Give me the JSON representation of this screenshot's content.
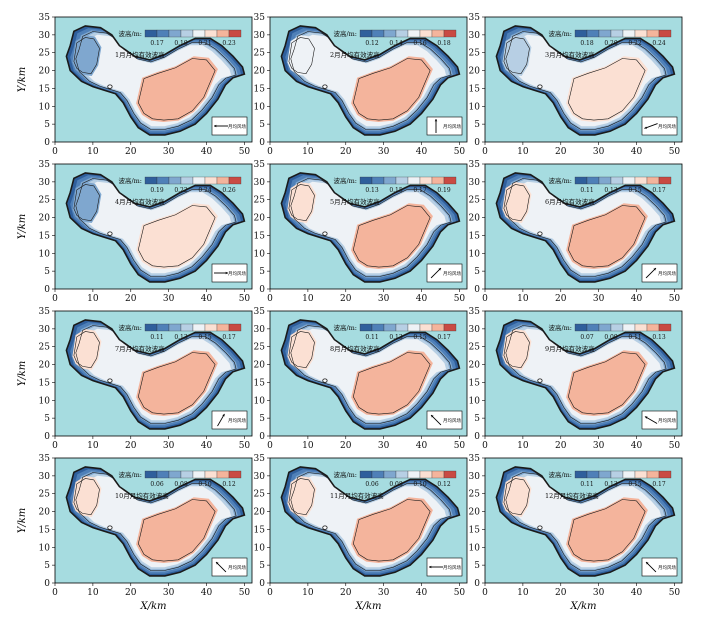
{
  "figure": {
    "x_axis_label": "X/km",
    "y_axis_label": "Y/km",
    "x_ticks": [
      "0",
      "10",
      "20",
      "30",
      "40",
      "50"
    ],
    "y_ticks": [
      "0",
      "5",
      "10",
      "15",
      "20",
      "25",
      "30",
      "35"
    ],
    "legend_prefix": "波高/m:",
    "wind_label": "月均风场"
  },
  "colors": {
    "background_water": "#a6dce0",
    "scale": [
      "#2f5f9c",
      "#4f80b8",
      "#7fa7cf",
      "#b7cfe4",
      "#eef2f6",
      "#fbe0d3",
      "#f4b49c",
      "#c94a43"
    ],
    "contour": "#1a1a1a",
    "shore": "#1a1a1a"
  },
  "chart_data": [
    {
      "type": "heatmap",
      "panel": 1,
      "title": "1月月均有效波高",
      "legend_ticks": [
        "0.17",
        "0.19",
        "0.21",
        "0.23"
      ],
      "max_level": 6,
      "west_level": 2,
      "wind_deg": 180,
      "xlim": [
        0,
        52
      ],
      "ylim": [
        0,
        35
      ]
    },
    {
      "type": "heatmap",
      "panel": 2,
      "title": "2月月均有效波高",
      "legend_ticks": [
        "0.12",
        "0.14",
        "0.16",
        "0.18"
      ],
      "max_level": 6,
      "west_level": 4,
      "wind_deg": 270,
      "xlim": [
        0,
        52
      ],
      "ylim": [
        0,
        35
      ]
    },
    {
      "type": "heatmap",
      "panel": 3,
      "title": "3月月均有效波高",
      "legend_ticks": [
        "0.18",
        "0.20",
        "0.22",
        "0.24"
      ],
      "max_level": 5,
      "west_level": 3,
      "wind_deg": 160,
      "xlim": [
        0,
        52
      ],
      "ylim": [
        0,
        35
      ]
    },
    {
      "type": "heatmap",
      "panel": 4,
      "title": "4月月均有效波高",
      "legend_ticks": [
        "0.19",
        "0.22",
        "0.24",
        "0.26"
      ],
      "max_level": 5,
      "west_level": 2,
      "wind_deg": 0,
      "xlim": [
        0,
        52
      ],
      "ylim": [
        0,
        35
      ]
    },
    {
      "type": "heatmap",
      "panel": 5,
      "title": "5月月均有效波高",
      "legend_ticks": [
        "0.13",
        "0.15",
        "0.17",
        "0.19"
      ],
      "max_level": 6,
      "west_level": 5,
      "wind_deg": 315,
      "xlim": [
        0,
        52
      ],
      "ylim": [
        0,
        35
      ]
    },
    {
      "type": "heatmap",
      "panel": 6,
      "title": "6月月均有效波高",
      "legend_ticks": [
        "0.11",
        "0.13",
        "0.15",
        "0.17"
      ],
      "max_level": 6,
      "west_level": 5,
      "wind_deg": 315,
      "xlim": [
        0,
        52
      ],
      "ylim": [
        0,
        35
      ]
    },
    {
      "type": "heatmap",
      "panel": 7,
      "title": "7月月均有效波高",
      "legend_ticks": [
        "0.11",
        "0.13",
        "0.15",
        "0.17"
      ],
      "max_level": 6,
      "west_level": 5,
      "wind_deg": 300,
      "xlim": [
        0,
        52
      ],
      "ylim": [
        0,
        35
      ]
    },
    {
      "type": "heatmap",
      "panel": 8,
      "title": "8月月均有效波高",
      "legend_ticks": [
        "0.11",
        "0.13",
        "0.15",
        "0.17"
      ],
      "max_level": 6,
      "west_level": 5,
      "wind_deg": 225,
      "xlim": [
        0,
        52
      ],
      "ylim": [
        0,
        35
      ]
    },
    {
      "type": "heatmap",
      "panel": 9,
      "title": "9月月均有效波高",
      "legend_ticks": [
        "0.07",
        "0.09",
        "0.11",
        "0.13"
      ],
      "max_level": 6,
      "west_level": 5,
      "wind_deg": 210,
      "xlim": [
        0,
        52
      ],
      "ylim": [
        0,
        35
      ]
    },
    {
      "type": "heatmap",
      "panel": 10,
      "title": "10月月均有效波高",
      "legend_ticks": [
        "0.06",
        "0.08",
        "0.10",
        "0.12"
      ],
      "max_level": 6,
      "west_level": 5,
      "wind_deg": 225,
      "xlim": [
        0,
        52
      ],
      "ylim": [
        0,
        35
      ]
    },
    {
      "type": "heatmap",
      "panel": 11,
      "title": "11月月均有效波高",
      "legend_ticks": [
        "0.06",
        "0.08",
        "0.10",
        "0.12"
      ],
      "max_level": 6,
      "west_level": 5,
      "wind_deg": 180,
      "xlim": [
        0,
        52
      ],
      "ylim": [
        0,
        35
      ]
    },
    {
      "type": "heatmap",
      "panel": 12,
      "title": "12月月均有效波高",
      "legend_ticks": [
        "0.11",
        "0.13",
        "0.15",
        "0.17"
      ],
      "max_level": 6,
      "west_level": 5,
      "wind_deg": 225,
      "xlim": [
        0,
        52
      ],
      "ylim": [
        0,
        35
      ]
    }
  ]
}
